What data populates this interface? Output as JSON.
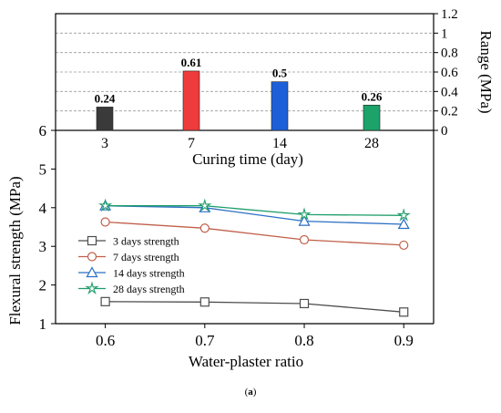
{
  "caption": {
    "open": "(",
    "letter": "a",
    "close": ")"
  },
  "chart_data": [
    {
      "type": "bar",
      "ylabel": "Range (MPa)",
      "xlabel": "Curing time (day)",
      "categories": [
        "3",
        "7",
        "14",
        "28"
      ],
      "values": [
        0.24,
        0.61,
        0.5,
        0.26
      ],
      "value_labels": [
        "0.24",
        "0.61",
        "0.5",
        "0.26"
      ],
      "colors": [
        "#3a3a3a",
        "#ee3b3b",
        "#1c5fd8",
        "#1ba36a"
      ],
      "ylim": [
        0,
        1.2
      ],
      "yticks": [
        0,
        0.2,
        0.4,
        0.6,
        0.8,
        1,
        1.2
      ],
      "ytick_labels": [
        "0",
        "0.2",
        "0.4",
        "0.6",
        "0.8",
        "1",
        "1.2"
      ],
      "y_axis_side": "right",
      "grid": "dashed horizontal"
    },
    {
      "type": "line",
      "xlabel": "Water-plaster ratio",
      "ylabel": "Flexural strength (MPa)",
      "x": [
        0.6,
        0.7,
        0.8,
        0.9
      ],
      "xtick_labels": [
        "0.6",
        "0.7",
        "0.8",
        "0.9"
      ],
      "xlim": [
        0.55,
        0.93
      ],
      "ylim": [
        1,
        6
      ],
      "yticks": [
        1,
        2,
        3,
        4,
        5,
        6
      ],
      "ytick_labels": [
        "1",
        "2",
        "3",
        "4",
        "5",
        "6"
      ],
      "legend_position": "center-left",
      "series": [
        {
          "name": "3 days strength",
          "values": [
            1.57,
            1.56,
            1.52,
            1.3
          ],
          "color": "#4d4d4d",
          "marker": "square"
        },
        {
          "name": "7 days strength",
          "values": [
            3.63,
            3.47,
            3.17,
            3.03
          ],
          "color": "#c0604a",
          "marker": "circle"
        },
        {
          "name": "14 days strength",
          "values": [
            4.05,
            4.0,
            3.65,
            3.57
          ],
          "color": "#2b6fc4",
          "marker": "triangle"
        },
        {
          "name": "28 days strength",
          "values": [
            4.05,
            4.05,
            3.82,
            3.8
          ],
          "color": "#1f9d6b",
          "marker": "star"
        }
      ]
    }
  ]
}
